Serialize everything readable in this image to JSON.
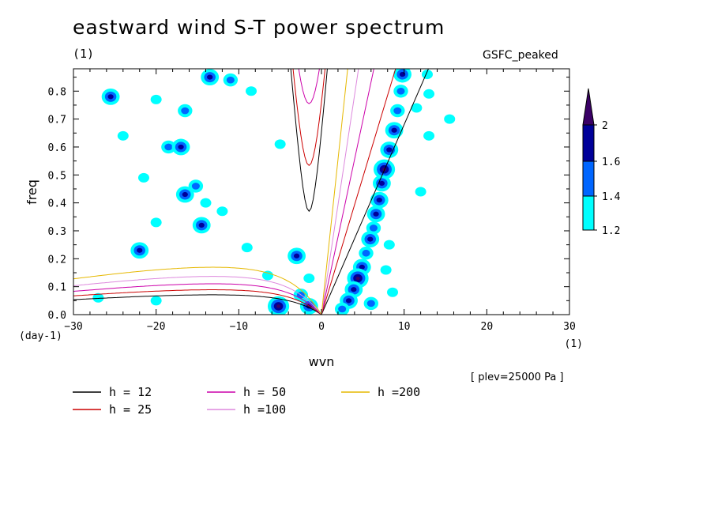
{
  "title": "eastward wind S-T power spectrum",
  "subtitle_left": "(1)",
  "subtitle_right": "GSFC_peaked",
  "plev_note": "[ plev=25000 Pa ]",
  "chart_data": {
    "type": "heatmap",
    "title": "eastward wind S-T power spectrum",
    "xlabel": "wvn",
    "ylabel": "freq",
    "x_unit": "(1)",
    "y_unit": "(day-1)",
    "xlim": [
      -30,
      30
    ],
    "ylim": [
      0,
      0.88
    ],
    "x_ticks": [
      -30,
      -20,
      -10,
      0,
      10,
      20,
      30
    ],
    "y_ticks": [
      0.0,
      0.1,
      0.2,
      0.3,
      0.4,
      0.5,
      0.6,
      0.7,
      0.8
    ],
    "colorbar": {
      "levels": [
        1.2,
        1.4,
        1.6,
        2
      ],
      "colors": [
        "#00ffff",
        "#0066ff",
        "#000099",
        "#3a0066"
      ],
      "labels": [
        "1.2",
        "1.4",
        "1.6",
        "2"
      ]
    },
    "dispersion_curves": [
      {
        "name": "h = 12",
        "h": 12,
        "color": "#000000"
      },
      {
        "name": "h = 25",
        "h": 25,
        "color": "#cc0000"
      },
      {
        "name": "h = 50",
        "h": 50,
        "color": "#cc00aa"
      },
      {
        "name": "h =100",
        "h": 100,
        "color": "#dd88dd"
      },
      {
        "name": "h =200",
        "h": 200,
        "color": "#e6b800"
      }
    ],
    "power_blobs": [
      {
        "x": 9.8,
        "y": 0.86,
        "level": 3
      },
      {
        "x": 9.6,
        "y": 0.8,
        "level": 2
      },
      {
        "x": 9.2,
        "y": 0.73,
        "level": 2
      },
      {
        "x": 8.8,
        "y": 0.66,
        "level": 3
      },
      {
        "x": 8.2,
        "y": 0.59,
        "level": 3
      },
      {
        "x": 7.6,
        "y": 0.52,
        "level": 4
      },
      {
        "x": 7.3,
        "y": 0.47,
        "level": 3
      },
      {
        "x": 7.0,
        "y": 0.41,
        "level": 3
      },
      {
        "x": 6.6,
        "y": 0.36,
        "level": 3
      },
      {
        "x": 6.3,
        "y": 0.31,
        "level": 2
      },
      {
        "x": 5.9,
        "y": 0.27,
        "level": 3
      },
      {
        "x": 5.4,
        "y": 0.22,
        "level": 2
      },
      {
        "x": 4.9,
        "y": 0.17,
        "level": 3
      },
      {
        "x": 4.4,
        "y": 0.13,
        "level": 4
      },
      {
        "x": 3.9,
        "y": 0.09,
        "level": 3
      },
      {
        "x": 3.3,
        "y": 0.05,
        "level": 3
      },
      {
        "x": 2.5,
        "y": 0.02,
        "level": 2
      },
      {
        "x": 8.2,
        "y": 0.25,
        "level": 1
      },
      {
        "x": 7.8,
        "y": 0.16,
        "level": 1
      },
      {
        "x": 8.6,
        "y": 0.08,
        "level": 1
      },
      {
        "x": 6.0,
        "y": 0.04,
        "level": 2
      },
      {
        "x": -2.5,
        "y": 0.07,
        "level": 2
      },
      {
        "x": -1.5,
        "y": 0.03,
        "level": 3
      },
      {
        "x": -5.2,
        "y": 0.03,
        "level": 4
      },
      {
        "x": -3.0,
        "y": 0.21,
        "level": 3
      },
      {
        "x": -1.5,
        "y": 0.13,
        "level": 1
      },
      {
        "x": -13.5,
        "y": 0.85,
        "level": 3
      },
      {
        "x": -11.0,
        "y": 0.84,
        "level": 2
      },
      {
        "x": -16.5,
        "y": 0.73,
        "level": 2
      },
      {
        "x": -20.0,
        "y": 0.77,
        "level": 1
      },
      {
        "x": -18.5,
        "y": 0.6,
        "level": 2
      },
      {
        "x": -17.0,
        "y": 0.6,
        "level": 3
      },
      {
        "x": -16.5,
        "y": 0.43,
        "level": 3
      },
      {
        "x": -15.2,
        "y": 0.46,
        "level": 2
      },
      {
        "x": -14.0,
        "y": 0.4,
        "level": 1
      },
      {
        "x": -25.5,
        "y": 0.78,
        "level": 3
      },
      {
        "x": -24.0,
        "y": 0.64,
        "level": 1
      },
      {
        "x": -14.5,
        "y": 0.32,
        "level": 3
      },
      {
        "x": -20.0,
        "y": 0.33,
        "level": 1
      },
      {
        "x": -22.0,
        "y": 0.23,
        "level": 3
      },
      {
        "x": -9.0,
        "y": 0.24,
        "level": 1
      },
      {
        "x": -6.5,
        "y": 0.14,
        "level": 1
      },
      {
        "x": -21.5,
        "y": 0.49,
        "level": 1
      },
      {
        "x": -5.0,
        "y": 0.61,
        "level": 1
      },
      {
        "x": 12.0,
        "y": 0.44,
        "level": 1
      },
      {
        "x": 13.0,
        "y": 0.64,
        "level": 1
      },
      {
        "x": 15.5,
        "y": 0.7,
        "level": 1
      },
      {
        "x": 11.5,
        "y": 0.74,
        "level": 1
      },
      {
        "x": 13.0,
        "y": 0.79,
        "level": 1
      },
      {
        "x": 12.8,
        "y": 0.86,
        "level": 1
      },
      {
        "x": -8.5,
        "y": 0.8,
        "level": 1
      },
      {
        "x": -27.0,
        "y": 0.06,
        "level": 1
      },
      {
        "x": -20.0,
        "y": 0.05,
        "level": 1
      },
      {
        "x": -12.0,
        "y": 0.37,
        "level": 1
      }
    ]
  }
}
